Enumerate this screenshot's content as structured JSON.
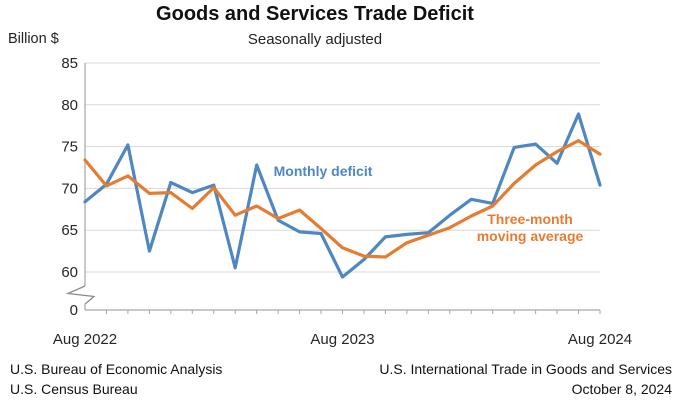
{
  "title": "Goods and Services Trade Deficit",
  "subtitle": "Seasonally adjusted",
  "y_axis_unit_label": "Billion $",
  "annotations": {
    "monthly": {
      "text": "Monthly deficit",
      "color": "#4e87c2"
    },
    "moving_average": {
      "line1": "Three-month",
      "line2": "moving average",
      "color": "#e47c32"
    }
  },
  "footer": {
    "left": [
      "U.S. Bureau of Economic Analysis",
      "U.S. Census Bureau"
    ],
    "right": [
      "U.S. International Trade in Goods and Services",
      "October 8, 2024"
    ]
  },
  "chart_data": {
    "type": "line",
    "x": [
      "Aug 2022",
      "Sep 2022",
      "Oct 2022",
      "Nov 2022",
      "Dec 2022",
      "Jan 2023",
      "Feb 2023",
      "Mar 2023",
      "Apr 2023",
      "May 2023",
      "Jun 2023",
      "Jul 2023",
      "Aug 2023",
      "Sep 2023",
      "Oct 2023",
      "Nov 2023",
      "Dec 2023",
      "Jan 2024",
      "Feb 2024",
      "Mar 2024",
      "Apr 2024",
      "May 2024",
      "Jun 2024",
      "Jul 2024",
      "Aug 2024"
    ],
    "series": [
      {
        "name": "Monthly deficit",
        "color": "#4e87c2",
        "values": [
          68.4,
          70.5,
          75.2,
          62.5,
          70.7,
          69.5,
          70.4,
          60.5,
          72.8,
          66.2,
          64.8,
          64.6,
          59.4,
          61.5,
          64.2,
          64.5,
          64.7,
          66.8,
          68.7,
          68.2,
          74.9,
          75.3,
          73.0,
          78.9,
          70.4
        ]
      },
      {
        "name": "Three-month moving average",
        "color": "#e47c32",
        "values": [
          73.4,
          70.3,
          71.5,
          69.4,
          69.5,
          67.6,
          70.1,
          66.8,
          67.9,
          66.4,
          67.4,
          65.2,
          62.9,
          61.9,
          61.8,
          63.5,
          64.4,
          65.3,
          66.7,
          67.9,
          70.6,
          72.8,
          74.4,
          75.7,
          74.1
        ]
      }
    ],
    "x_tick_labels": [
      {
        "label": "Aug 2022",
        "month_index": 0
      },
      {
        "label": "Aug 2023",
        "month_index": 12
      },
      {
        "label": "Aug 2024",
        "month_index": 24
      }
    ],
    "y_ticks": [
      60,
      65,
      70,
      75,
      80,
      85
    ],
    "y_zero_label": "0",
    "y_axis_break": true,
    "ylabel": "Billion $",
    "xlabel": "",
    "ylim": [
      60,
      85
    ],
    "grid": "horizontal",
    "legend": "inline-annotations",
    "colors": {
      "gridline": "#d9d9d9",
      "axis": "#a6a6a6",
      "tick_text": "#262626"
    }
  }
}
